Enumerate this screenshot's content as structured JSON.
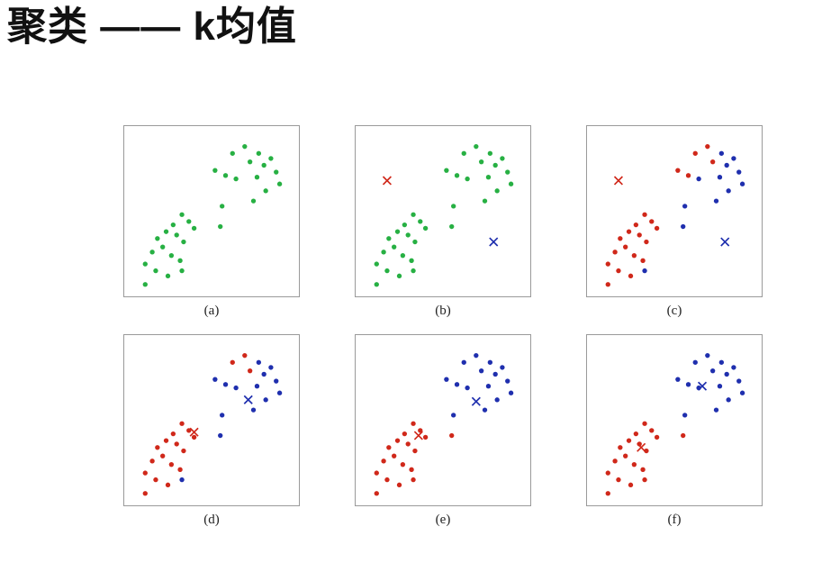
{
  "title": "聚类 —— k均值",
  "colors": {
    "green": "#27b043",
    "red": "#d0281a",
    "blue": "#1f2fae",
    "panel_border": "#9a9a9a",
    "label": "#222222",
    "title": "#111111"
  },
  "chart_data": {
    "type": "scatter",
    "title": "K-means clustering iterations (panels a-f)",
    "note": "Point coordinates are normalized 0-1 within each panel, y increasing downward. Same point cloud in every panel; 'assignment' gives per-point color class per panel: g=green (unassigned), r=red cluster, b=blue cluster. Centroids are X markers [x, y, color].",
    "x_range": [
      0,
      1
    ],
    "y_range": [
      0,
      1
    ],
    "grid": false,
    "legend": false,
    "base_points": [
      [
        0.62,
        0.16
      ],
      [
        0.69,
        0.12
      ],
      [
        0.72,
        0.21
      ],
      [
        0.77,
        0.16
      ],
      [
        0.8,
        0.23
      ],
      [
        0.84,
        0.19
      ],
      [
        0.87,
        0.27
      ],
      [
        0.52,
        0.26
      ],
      [
        0.58,
        0.29
      ],
      [
        0.64,
        0.31
      ],
      [
        0.76,
        0.3
      ],
      [
        0.89,
        0.34
      ],
      [
        0.81,
        0.38
      ],
      [
        0.74,
        0.44
      ],
      [
        0.56,
        0.47
      ],
      [
        0.55,
        0.59
      ],
      [
        0.33,
        0.52
      ],
      [
        0.37,
        0.56
      ],
      [
        0.28,
        0.58
      ],
      [
        0.4,
        0.6
      ],
      [
        0.24,
        0.62
      ],
      [
        0.3,
        0.64
      ],
      [
        0.19,
        0.66
      ],
      [
        0.34,
        0.68
      ],
      [
        0.22,
        0.71
      ],
      [
        0.16,
        0.74
      ],
      [
        0.27,
        0.76
      ],
      [
        0.32,
        0.79
      ],
      [
        0.12,
        0.81
      ],
      [
        0.18,
        0.85
      ],
      [
        0.33,
        0.85
      ],
      [
        0.25,
        0.88
      ],
      [
        0.12,
        0.93
      ]
    ],
    "panels": [
      {
        "label": "(a)",
        "assignment": "ggggggggggggggggggggggggggggggggg",
        "centroids": []
      },
      {
        "label": "(b)",
        "assignment": "ggggggggggggggggggggggggggggggggg",
        "centroids": [
          [
            0.18,
            0.32,
            "r"
          ],
          [
            0.79,
            0.68,
            "b"
          ]
        ]
      },
      {
        "label": "(c)",
        "assignment": "rrrbbbbrrbbbbbbbrrrrrrrrrrrrrrbrr",
        "centroids": [
          [
            0.18,
            0.32,
            "r"
          ],
          [
            0.79,
            0.68,
            "b"
          ]
        ]
      },
      {
        "label": "(d)",
        "assignment": "rrrbbbbbbbbbbbbbrrrrrrrrrrrrrrbrr",
        "centroids": [
          [
            0.4,
            0.57,
            "r"
          ],
          [
            0.71,
            0.38,
            "b"
          ]
        ]
      },
      {
        "label": "(e)",
        "assignment": "bbbbbbbbbbbbbbbrrrrrrrrrrrrrrrrrr",
        "centroids": [
          [
            0.36,
            0.59,
            "r"
          ],
          [
            0.69,
            0.39,
            "b"
          ]
        ]
      },
      {
        "label": "(f)",
        "assignment": "bbbbbbbbbbbbbbbrrrrrrrrrrrrrrrrrr",
        "centroids": [
          [
            0.31,
            0.66,
            "r"
          ],
          [
            0.66,
            0.3,
            "b"
          ]
        ]
      }
    ]
  }
}
